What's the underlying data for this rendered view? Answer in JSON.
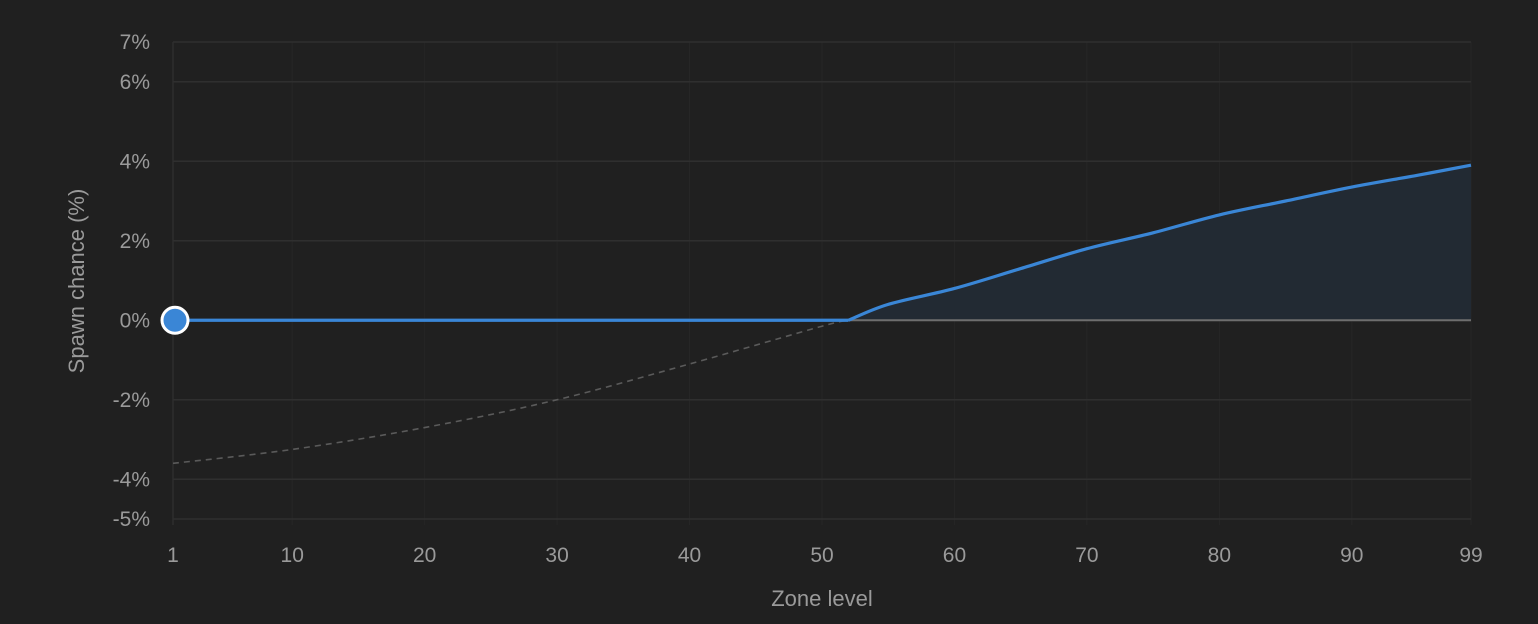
{
  "chart_data": {
    "type": "area",
    "title": "",
    "xlabel": "Zone level",
    "ylabel": "Spawn chance (%)",
    "xlim": [
      1,
      99
    ],
    "ylim": [
      -5,
      7
    ],
    "x_ticks": [
      1,
      10,
      20,
      30,
      40,
      50,
      60,
      70,
      80,
      90,
      99
    ],
    "x_tick_labels": [
      "1",
      "10",
      "20",
      "30",
      "40",
      "50",
      "60",
      "70",
      "80",
      "90",
      "99"
    ],
    "y_ticks": [
      -5,
      -4,
      -2,
      0,
      2,
      4,
      6,
      7
    ],
    "y_tick_labels": [
      "-5%",
      "-4%",
      "-2%",
      "0%",
      "2%",
      "4%",
      "6%",
      "7%"
    ],
    "grid": true,
    "series": [
      {
        "role": "clamped",
        "x": [
          1,
          10,
          20,
          30,
          40,
          50,
          52,
          55,
          60,
          65,
          70,
          75,
          80,
          85,
          90,
          95,
          99
        ],
        "y": [
          0,
          0,
          0,
          0,
          0,
          0,
          0,
          0.4,
          0.8,
          1.3,
          1.8,
          2.2,
          2.65,
          3.0,
          3.35,
          3.65,
          3.9
        ]
      },
      {
        "role": "raw",
        "x": [
          1,
          10,
          20,
          30,
          40,
          50,
          52
        ],
        "y": [
          -3.6,
          -3.25,
          -2.7,
          -2.0,
          -1.1,
          -0.15,
          0
        ]
      }
    ],
    "marker": {
      "x": 1,
      "y": 0
    },
    "colors": {
      "line": "#3a86d6",
      "fill": "#222a33",
      "raw_line": "#5a5a5a",
      "zero_line": "#6e6e6e",
      "grid": "#2f2f2f",
      "marker_stroke": "#ffffff"
    }
  }
}
